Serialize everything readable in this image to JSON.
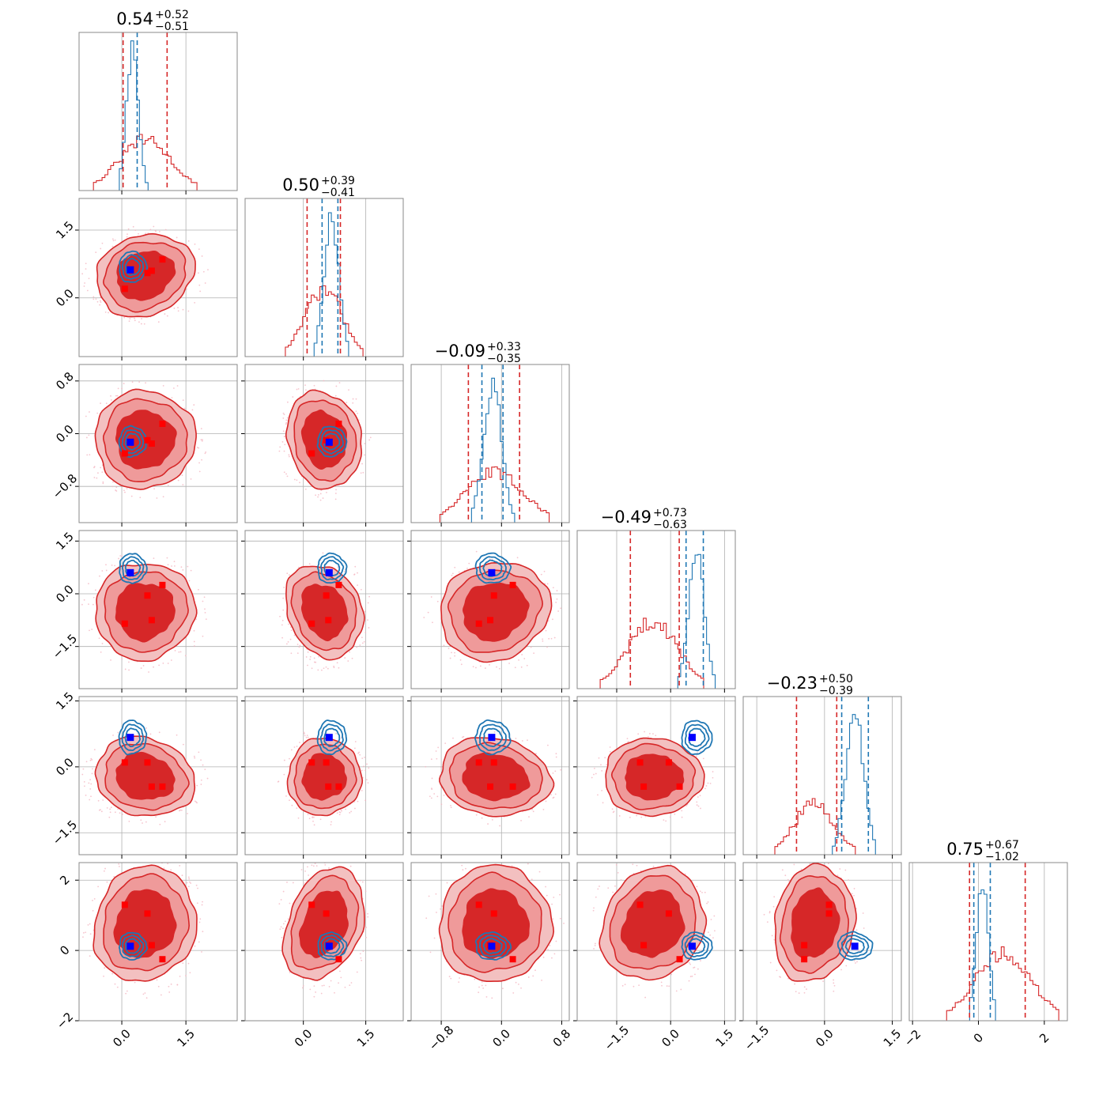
{
  "chart_data": {
    "type": "corner",
    "grid": true,
    "colors": {
      "red": "#d62728",
      "blue": "#1f77b4",
      "red_light": "#ef9a9a",
      "red_mid": "#e57373",
      "marker_red": "#ff0000",
      "marker_blue": "#0000ff",
      "frame": "#888888",
      "grid": "#b0b0b0"
    },
    "params": [
      {
        "title_main": "0.54",
        "title_plus": "+0.52",
        "title_minus": "−0.51",
        "range": [
          -1.0,
          2.7
        ],
        "ticks": [
          0.0,
          1.5
        ],
        "tick_labels": [
          "0.0",
          "1.5"
        ],
        "red": {
          "mean": 0.54,
          "sd": 0.6
        },
        "blue": {
          "mean": 0.25,
          "sd": 0.14
        },
        "red_lines": [
          0.03,
          1.06
        ],
        "blue_lines": [
          0.36
        ]
      },
      {
        "title_main": "0.50",
        "title_plus": "+0.39",
        "title_minus": "−0.41",
        "range": [
          -1.4,
          2.4
        ],
        "ticks": [
          0.0,
          1.5
        ],
        "tick_labels": [
          "0.0",
          "1.5"
        ],
        "red": {
          "mean": 0.5,
          "sd": 0.45
        },
        "blue": {
          "mean": 0.68,
          "sd": 0.18
        },
        "red_lines": [
          0.09,
          0.89
        ],
        "blue_lines": [
          0.45,
          0.83
        ]
      },
      {
        "title_main": "−0.09",
        "title_plus": "+0.33",
        "title_minus": "−0.35",
        "range": [
          -1.2,
          0.9
        ],
        "ticks": [
          -0.8,
          0.0,
          0.8
        ],
        "tick_labels": [
          "−0.8",
          "0.0",
          "0.8"
        ],
        "red": {
          "mean": -0.09,
          "sd": 0.38
        },
        "blue": {
          "mean": -0.12,
          "sd": 0.12
        },
        "red_lines": [
          -0.44,
          0.24
        ],
        "blue_lines": [
          -0.26,
          0.02
        ]
      },
      {
        "title_main": "−0.49",
        "title_plus": "+0.73",
        "title_minus": "−0.63",
        "range": [
          -2.6,
          1.8
        ],
        "ticks": [
          -1.5,
          0.0,
          1.5
        ],
        "tick_labels": [
          "−1.5",
          "0.0",
          "1.5"
        ],
        "red": {
          "mean": -0.49,
          "sd": 0.7
        },
        "blue": {
          "mean": 0.72,
          "sd": 0.22
        },
        "red_lines": [
          -1.12,
          0.24
        ],
        "blue_lines": [
          0.43,
          0.91
        ]
      },
      {
        "title_main": "−0.23",
        "title_plus": "+0.50",
        "title_minus": "−0.39",
        "range": [
          -1.8,
          1.7
        ],
        "ticks": [
          -1.5,
          0.0,
          1.5
        ],
        "tick_labels": [
          "−1.5",
          "0.0",
          "1.5"
        ],
        "red": {
          "mean": -0.23,
          "sd": 0.45
        },
        "blue": {
          "mean": 0.67,
          "sd": 0.2
        },
        "red_lines": [
          -0.62,
          0.27
        ],
        "blue_lines": [
          0.38,
          0.97
        ]
      },
      {
        "title_main": "0.75",
        "title_plus": "+0.67",
        "title_minus": "−1.02",
        "range": [
          -2.1,
          2.7
        ],
        "ticks": [
          -2,
          0,
          2
        ],
        "tick_labels": [
          "−2",
          "0",
          "2"
        ],
        "red": {
          "mean": 0.75,
          "sd": 0.85
        },
        "blue": {
          "mean": 0.12,
          "sd": 0.18
        },
        "red_lines": [
          -0.27,
          1.42
        ],
        "blue_lines": [
          -0.14,
          0.36
        ]
      }
    ],
    "y_axes": [
      null,
      {
        "ticks": [
          0.0,
          1.5
        ],
        "tick_labels": [
          "0.0",
          "1.5"
        ],
        "range": [
          -1.3,
          2.2
        ]
      },
      {
        "ticks": [
          -0.8,
          0.0,
          0.8
        ],
        "tick_labels": [
          "−0.8",
          "0.0",
          "0.8"
        ],
        "range": [
          -1.35,
          1.05
        ]
      },
      {
        "ticks": [
          -1.5,
          0.0,
          1.5
        ],
        "tick_labels": [
          "−1.5",
          "0.0",
          "1.5"
        ],
        "range": [
          -2.7,
          1.8
        ]
      },
      {
        "ticks": [
          -1.5,
          0.0,
          1.5
        ],
        "tick_labels": [
          "−1.5",
          "0.0",
          "1.5"
        ],
        "range": [
          -2.0,
          1.6
        ]
      },
      {
        "ticks": [
          -2,
          0,
          2
        ],
        "tick_labels": [
          "−2",
          "0",
          "2"
        ],
        "range": [
          -2.0,
          2.5
        ]
      }
    ],
    "markers_red": [
      [
        0.07,
        0.2,
        -0.3,
        -0.85,
        0.1,
        1.3
      ],
      [
        0.6,
        0.55,
        -0.1,
        -0.05,
        0.1,
        1.05
      ],
      [
        0.7,
        0.6,
        -0.15,
        -0.75,
        -0.45,
        0.15
      ],
      [
        0.95,
        0.85,
        0.15,
        0.25,
        -0.45,
        -0.25
      ]
    ],
    "marker_blue": [
      0.2,
      0.62,
      -0.13,
      0.6,
      0.67,
      0.12
    ]
  }
}
